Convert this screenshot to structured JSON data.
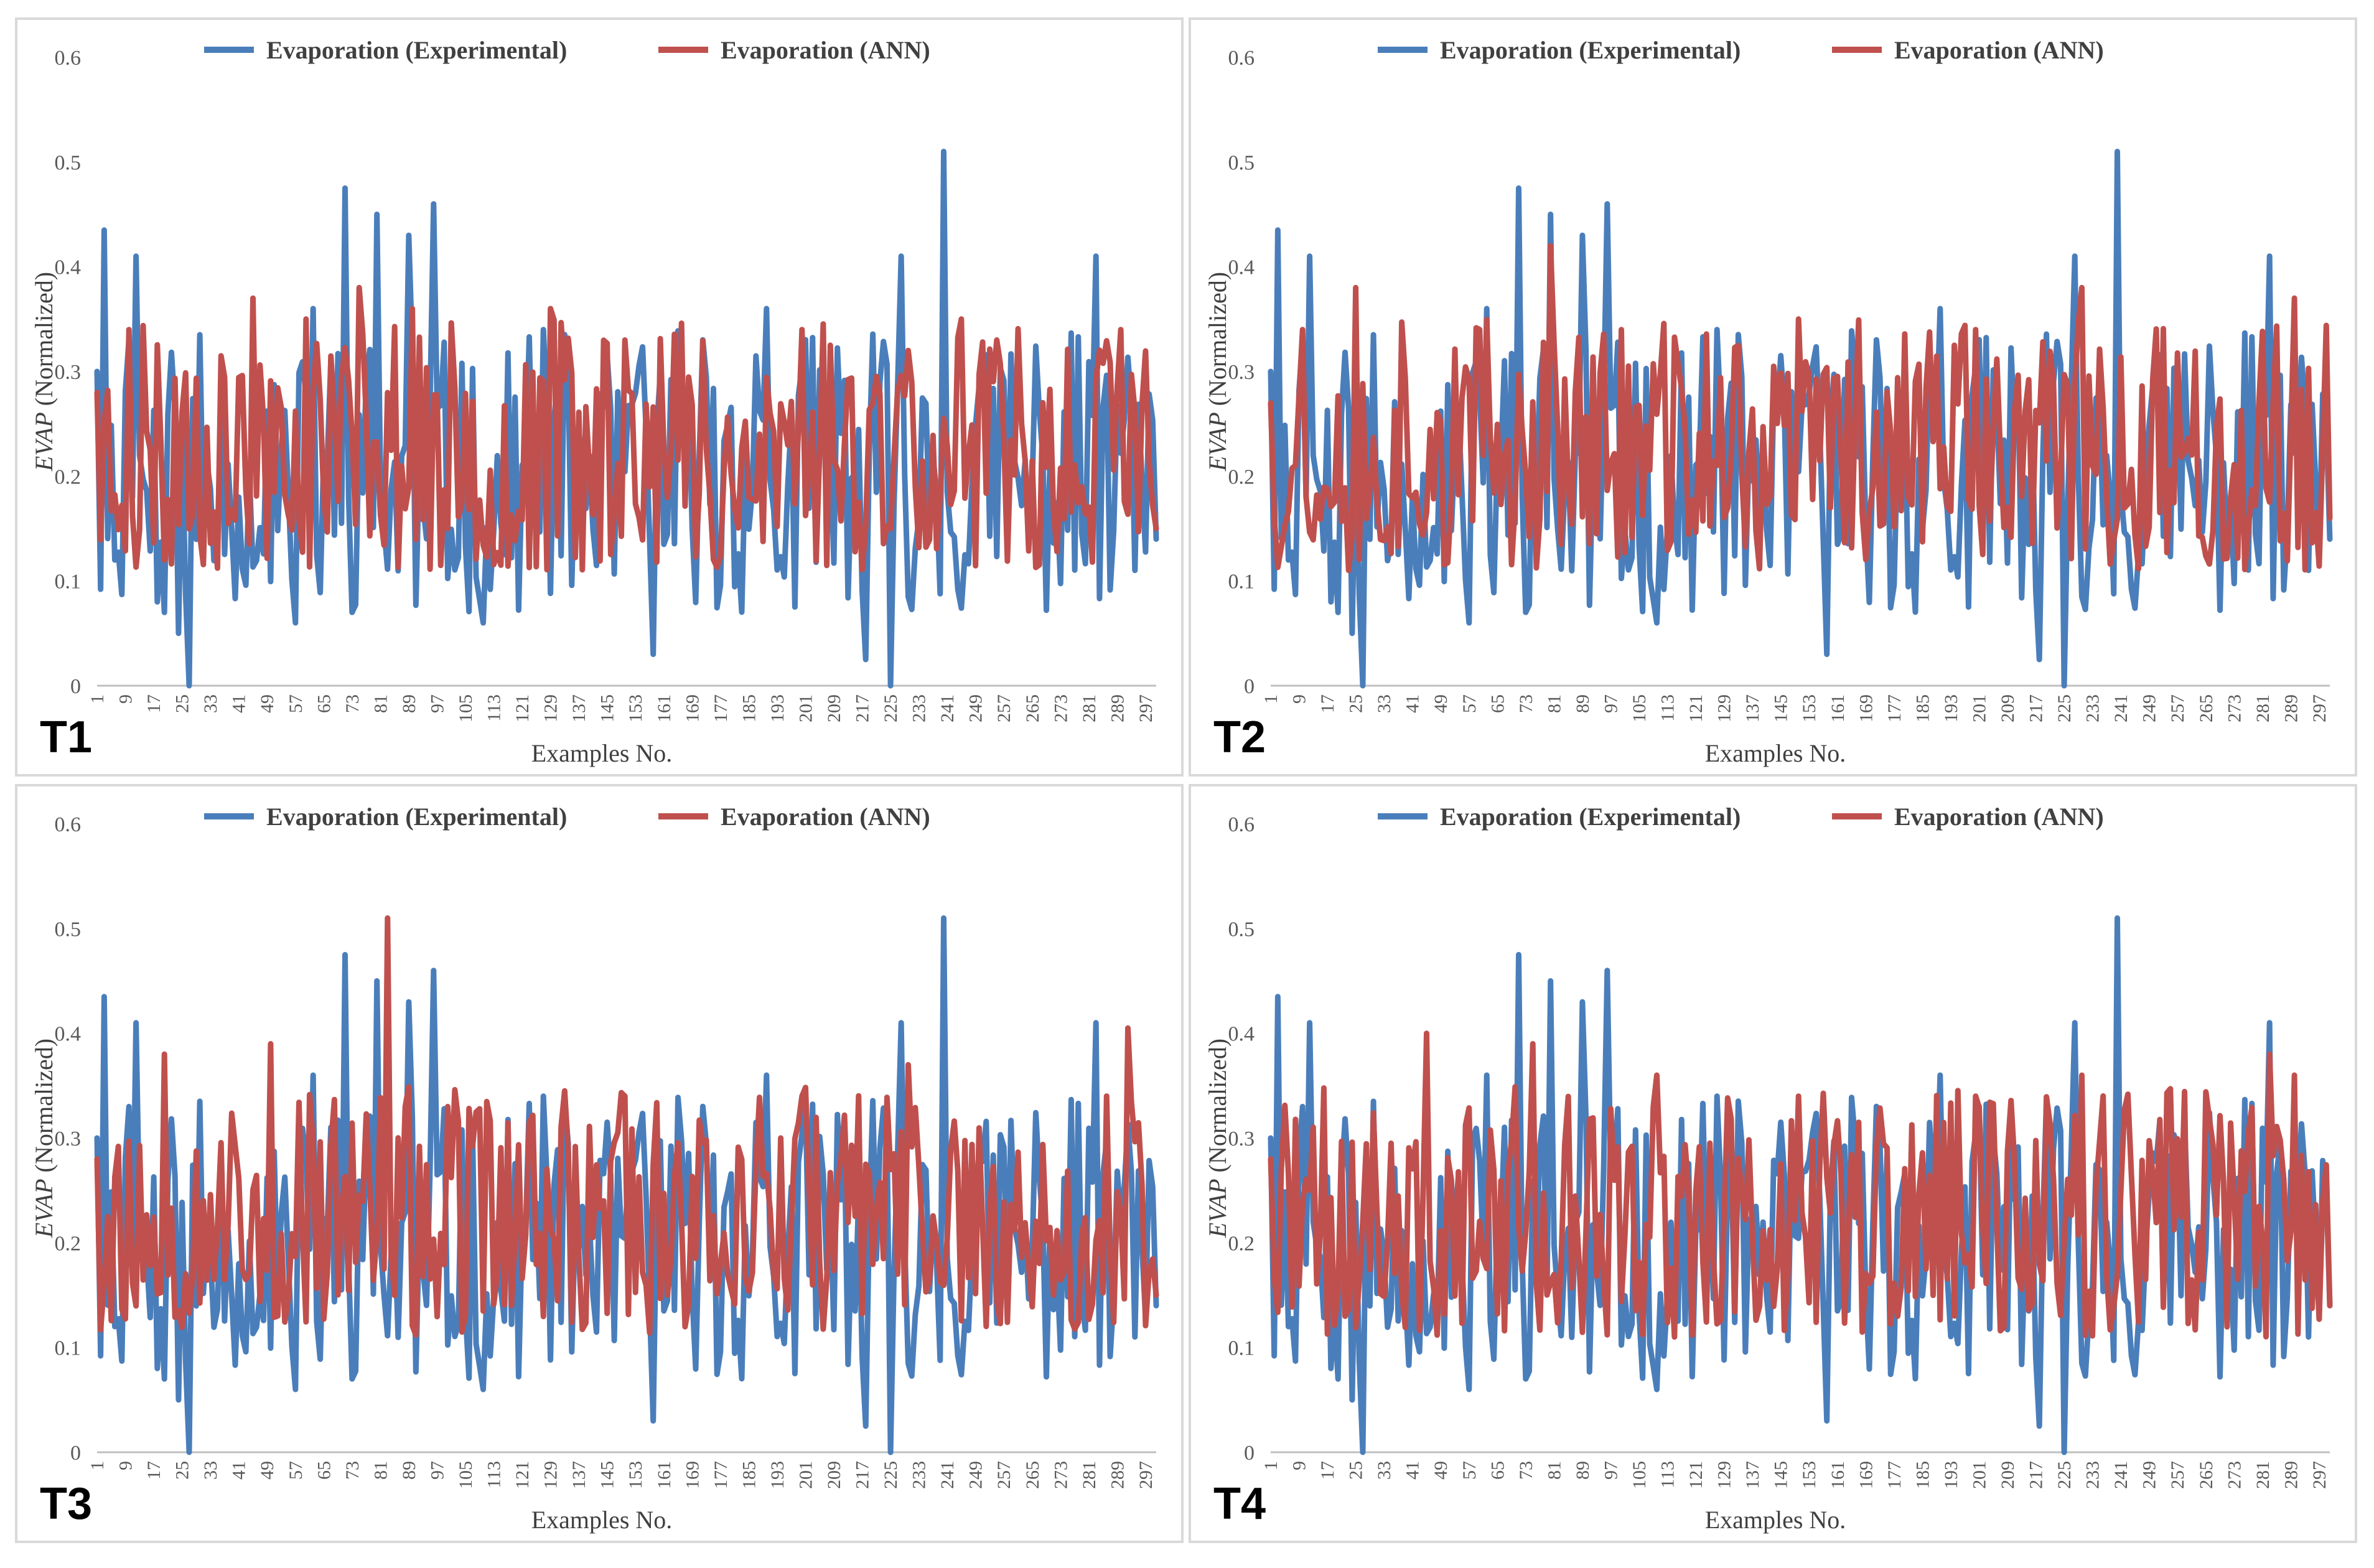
{
  "colors": {
    "experimental": "#4a7ebb",
    "ann": "#c0504d",
    "axis": "#bfbfbf",
    "text": "#595959"
  },
  "chart_data": [
    {
      "type": "line",
      "panel_label": "T1",
      "title": "",
      "xlabel": "Examples No.",
      "ylabel": "EVAP",
      "ylabel_suffix": " (Normalized)",
      "ylim": [
        0,
        0.6
      ],
      "yticks": [
        "0",
        "0.1",
        "0.2",
        "0.3",
        "0.4",
        "0.5",
        "0.6"
      ],
      "xlim": [
        1,
        300
      ],
      "xticks": [
        "1",
        "9",
        "17",
        "25",
        "33",
        "41",
        "49",
        "57",
        "65",
        "73",
        "81",
        "89",
        "97",
        "105",
        "113",
        "121",
        "129",
        "137",
        "145",
        "153",
        "161",
        "169",
        "177",
        "185",
        "193",
        "201",
        "209",
        "217",
        "225",
        "233",
        "241",
        "249",
        "257",
        "265",
        "273",
        "281",
        "289",
        "297"
      ],
      "series": [
        {
          "name": "Evaporation (Experimental)",
          "seed": 11,
          "values": [
            [
              1,
              0.3
            ],
            [
              3,
              0.435
            ],
            [
              6,
              0.12
            ],
            [
              10,
              0.33
            ],
            [
              12,
              0.41
            ],
            [
              20,
              0.07
            ],
            [
              24,
              0.05
            ],
            [
              27,
              0.0
            ],
            [
              41,
              0.18
            ],
            [
              57,
              0.06
            ],
            [
              62,
              0.36
            ],
            [
              71,
              0.475
            ],
            [
              80,
              0.45
            ],
            [
              89,
              0.43
            ],
            [
              96,
              0.46
            ],
            [
              110,
              0.06
            ],
            [
              127,
              0.34
            ],
            [
              158,
              0.03
            ],
            [
              190,
              0.36
            ],
            [
              218,
              0.025
            ],
            [
              225,
              0.0
            ],
            [
              228,
              0.41
            ],
            [
              240,
              0.51
            ],
            [
              246,
              0.125
            ],
            [
              283,
              0.41
            ]
          ]
        },
        {
          "name": "Evaporation (ANN)",
          "seed": 23,
          "values": [
            [
              1,
              0.28
            ],
            [
              10,
              0.34
            ],
            [
              20,
              0.12
            ],
            [
              45,
              0.37
            ],
            [
              60,
              0.35
            ],
            [
              75,
              0.38
            ],
            [
              90,
              0.36
            ],
            [
              100,
              0.15
            ],
            [
              129,
              0.36
            ],
            [
              150,
              0.33
            ],
            [
              200,
              0.34
            ],
            [
              230,
              0.32
            ],
            [
              245,
              0.35
            ],
            [
              290,
              0.34
            ],
            [
              300,
              0.15
            ]
          ]
        }
      ]
    },
    {
      "type": "line",
      "panel_label": "T2",
      "title": "",
      "xlabel": "Examples No.",
      "ylabel": "EVAP",
      "ylabel_suffix": " (Normalized)",
      "ylim": [
        0,
        0.6
      ],
      "yticks": [
        "0",
        "0.1",
        "0.2",
        "0.3",
        "0.4",
        "0.5",
        "0.6"
      ],
      "xlim": [
        1,
        300
      ],
      "xticks": [
        "1",
        "9",
        "17",
        "25",
        "33",
        "41",
        "49",
        "57",
        "65",
        "73",
        "81",
        "89",
        "97",
        "105",
        "113",
        "121",
        "129",
        "137",
        "145",
        "153",
        "161",
        "169",
        "177",
        "185",
        "193",
        "201",
        "209",
        "217",
        "225",
        "233",
        "241",
        "249",
        "257",
        "265",
        "273",
        "281",
        "289",
        "297"
      ],
      "series": [
        {
          "name": "Evaporation (Experimental)",
          "seed": 11,
          "values": [
            [
              1,
              0.3
            ],
            [
              3,
              0.435
            ],
            [
              6,
              0.12
            ],
            [
              10,
              0.33
            ],
            [
              12,
              0.41
            ],
            [
              20,
              0.07
            ],
            [
              24,
              0.05
            ],
            [
              27,
              0.0
            ],
            [
              41,
              0.18
            ],
            [
              57,
              0.06
            ],
            [
              62,
              0.36
            ],
            [
              71,
              0.475
            ],
            [
              80,
              0.45
            ],
            [
              89,
              0.43
            ],
            [
              96,
              0.46
            ],
            [
              110,
              0.06
            ],
            [
              127,
              0.34
            ],
            [
              158,
              0.03
            ],
            [
              190,
              0.36
            ],
            [
              218,
              0.025
            ],
            [
              225,
              0.0
            ],
            [
              228,
              0.41
            ],
            [
              240,
              0.51
            ],
            [
              246,
              0.125
            ],
            [
              283,
              0.41
            ]
          ]
        },
        {
          "name": "Evaporation (ANN)",
          "seed": 37,
          "values": [
            [
              1,
              0.27
            ],
            [
              10,
              0.34
            ],
            [
              25,
              0.38
            ],
            [
              60,
              0.34
            ],
            [
              80,
              0.42
            ],
            [
              100,
              0.34
            ],
            [
              150,
              0.35
            ],
            [
              200,
              0.34
            ],
            [
              230,
              0.38
            ],
            [
              290,
              0.37
            ],
            [
              300,
              0.16
            ]
          ]
        }
      ]
    },
    {
      "type": "line",
      "panel_label": "T3",
      "title": "",
      "xlabel": "Examples No.",
      "ylabel": "EVAP",
      "ylabel_suffix": " (Normalized)",
      "ylim": [
        0,
        0.6
      ],
      "yticks": [
        "0",
        "0.1",
        "0.2",
        "0.3",
        "0.4",
        "0.5",
        "0.6"
      ],
      "xlim": [
        1,
        300
      ],
      "xticks": [
        "1",
        "9",
        "17",
        "25",
        "33",
        "41",
        "49",
        "57",
        "65",
        "73",
        "81",
        "89",
        "97",
        "105",
        "113",
        "121",
        "129",
        "137",
        "145",
        "153",
        "161",
        "169",
        "177",
        "185",
        "193",
        "201",
        "209",
        "217",
        "225",
        "233",
        "241",
        "249",
        "257",
        "265",
        "273",
        "281",
        "289",
        "297"
      ],
      "series": [
        {
          "name": "Evaporation (Experimental)",
          "seed": 11,
          "values": [
            [
              1,
              0.3
            ],
            [
              3,
              0.435
            ],
            [
              6,
              0.12
            ],
            [
              10,
              0.33
            ],
            [
              12,
              0.41
            ],
            [
              20,
              0.07
            ],
            [
              24,
              0.05
            ],
            [
              27,
              0.0
            ],
            [
              41,
              0.18
            ],
            [
              57,
              0.06
            ],
            [
              62,
              0.36
            ],
            [
              71,
              0.475
            ],
            [
              80,
              0.45
            ],
            [
              89,
              0.43
            ],
            [
              96,
              0.46
            ],
            [
              110,
              0.06
            ],
            [
              127,
              0.34
            ],
            [
              158,
              0.03
            ],
            [
              190,
              0.36
            ],
            [
              218,
              0.025
            ],
            [
              225,
              0.0
            ],
            [
              228,
              0.41
            ],
            [
              240,
              0.51
            ],
            [
              246,
              0.125
            ],
            [
              283,
              0.41
            ]
          ]
        },
        {
          "name": "Evaporation (ANN)",
          "seed": 53,
          "values": [
            [
              1,
              0.28
            ],
            [
              20,
              0.38
            ],
            [
              50,
              0.39
            ],
            [
              83,
              0.51
            ],
            [
              100,
              0.33
            ],
            [
              150,
              0.34
            ],
            [
              200,
              0.34
            ],
            [
              230,
              0.37
            ],
            [
              292,
              0.405
            ],
            [
              300,
              0.15
            ]
          ]
        }
      ]
    },
    {
      "type": "line",
      "panel_label": "T4",
      "title": "",
      "xlabel": "Examples No.",
      "ylabel": "EVAP",
      "ylabel_suffix": " (Normalized)",
      "ylim": [
        0,
        0.6
      ],
      "yticks": [
        "0",
        "0.1",
        "0.2",
        "0.3",
        "0.4",
        "0.5",
        "0.6"
      ],
      "xlim": [
        1,
        300
      ],
      "xticks": [
        "1",
        "9",
        "17",
        "25",
        "33",
        "41",
        "49",
        "57",
        "65",
        "73",
        "81",
        "89",
        "97",
        "105",
        "113",
        "121",
        "129",
        "137",
        "145",
        "153",
        "161",
        "169",
        "177",
        "185",
        "193",
        "201",
        "209",
        "217",
        "225",
        "233",
        "241",
        "249",
        "257",
        "265",
        "273",
        "281",
        "289",
        "297"
      ],
      "series": [
        {
          "name": "Evaporation (Experimental)",
          "seed": 11,
          "values": [
            [
              1,
              0.3
            ],
            [
              3,
              0.435
            ],
            [
              6,
              0.12
            ],
            [
              10,
              0.33
            ],
            [
              12,
              0.41
            ],
            [
              20,
              0.07
            ],
            [
              24,
              0.05
            ],
            [
              27,
              0.0
            ],
            [
              41,
              0.18
            ],
            [
              57,
              0.06
            ],
            [
              62,
              0.36
            ],
            [
              71,
              0.475
            ],
            [
              80,
              0.45
            ],
            [
              89,
              0.43
            ],
            [
              96,
              0.46
            ],
            [
              110,
              0.06
            ],
            [
              127,
              0.34
            ],
            [
              158,
              0.03
            ],
            [
              190,
              0.36
            ],
            [
              218,
              0.025
            ],
            [
              225,
              0.0
            ],
            [
              228,
              0.41
            ],
            [
              240,
              0.51
            ],
            [
              246,
              0.125
            ],
            [
              283,
              0.41
            ]
          ]
        },
        {
          "name": "Evaporation (ANN)",
          "seed": 71,
          "values": [
            [
              1,
              0.28
            ],
            [
              45,
              0.4
            ],
            [
              75,
              0.39
            ],
            [
              110,
              0.36
            ],
            [
              150,
              0.34
            ],
            [
              200,
              0.34
            ],
            [
              230,
              0.36
            ],
            [
              283,
              0.38
            ],
            [
              290,
              0.36
            ],
            [
              300,
              0.14
            ]
          ]
        }
      ]
    }
  ]
}
